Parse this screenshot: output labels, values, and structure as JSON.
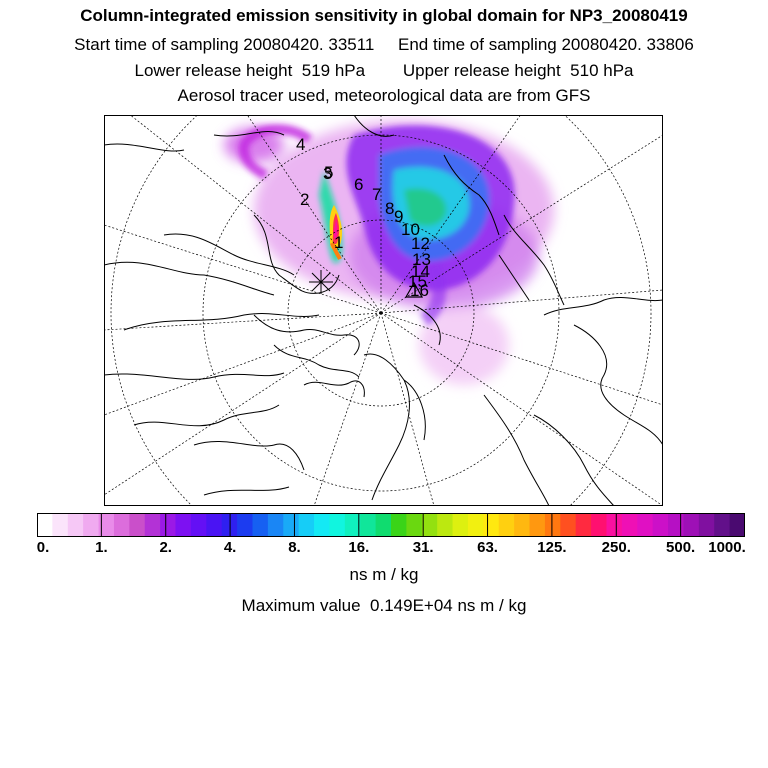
{
  "titles": {
    "line1": "Column-integrated emission sensitivity in global domain for NP3_20080419",
    "line2": "Start time of sampling 20080420. 33511     End time of sampling 20080420. 33806",
    "line3": "Lower release height  519 hPa        Upper release height  510 hPa",
    "line4": "Aerosol tracer used, meteorological data are from GFS"
  },
  "map": {
    "projection": "north-polar-stereographic",
    "point_labels": [
      "1",
      "2",
      "3",
      "4",
      "5",
      "6",
      "7",
      "8",
      "9",
      "10",
      "12",
      "13",
      "14",
      "15",
      "16"
    ],
    "release_marker": "asterisk",
    "end_marker": "triangle"
  },
  "colorbar": {
    "colors": [
      "#ffffff",
      "#fbe4fb",
      "#f6c8f6",
      "#f0aaf0",
      "#e98be9",
      "#dc6ddc",
      "#ca4fca",
      "#b332d6",
      "#9b19e6",
      "#7d11f2",
      "#6410f5",
      "#4a14f3",
      "#2f20f0",
      "#1c3cf0",
      "#1660f2",
      "#1a86f5",
      "#19aaf7",
      "#16cdf7",
      "#14e9f4",
      "#11f5df",
      "#10f0be",
      "#10e69a",
      "#10dc6f",
      "#3ad418",
      "#6ad810",
      "#93e010",
      "#bce810",
      "#ddf010",
      "#f2f010",
      "#ffe810",
      "#ffd010",
      "#ffb810",
      "#ff9810",
      "#ff7810",
      "#ff5020",
      "#ff2a40",
      "#ff1070",
      "#fa10a0",
      "#ef10b5",
      "#e010c3",
      "#cc10c8",
      "#b610c4",
      "#9e10b6",
      "#8010a0",
      "#62108a",
      "#4a0a70"
    ],
    "tick_labels": [
      "0.",
      "1.",
      "2.",
      "4.",
      "8.",
      "16.",
      "31.",
      "63.",
      "125.",
      "250.",
      "500.",
      "1000."
    ],
    "unit": "ns m / kg"
  },
  "maximum": {
    "text": "Maximum value  0.149E+04 ns m / kg"
  }
}
